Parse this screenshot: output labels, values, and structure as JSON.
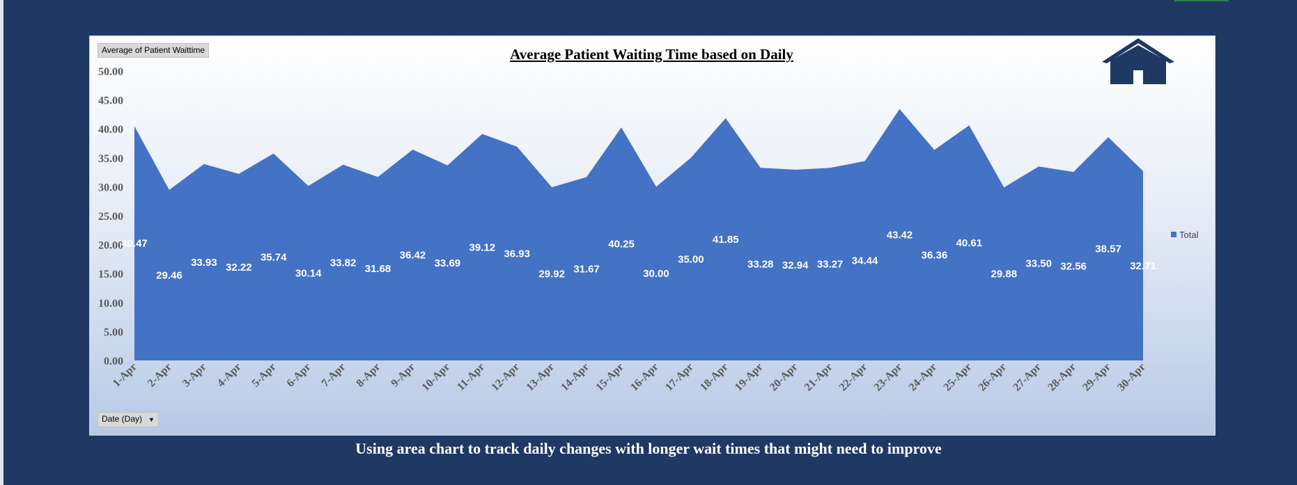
{
  "header": {
    "measure_chip": "Average of Patient Waittime",
    "title": "Average Patient Waiting Time based on Daily"
  },
  "filters": {
    "date_chip": "Date (Day)"
  },
  "caption": "Using area chart to track daily changes with longer wait times that might need to improve",
  "colors": {
    "background": "#1f3864",
    "area_fill": "#4472c4",
    "home_icon": "#1f3864"
  },
  "icons": {
    "home": "home-icon",
    "dropdown": "dropdown-arrow-icon"
  },
  "chart_data": {
    "type": "area",
    "title": "Average Patient Waiting Time based on Daily",
    "xlabel": "",
    "ylabel": "",
    "ylim": [
      0,
      50
    ],
    "yticks": [
      "0.00",
      "5.00",
      "10.00",
      "15.00",
      "20.00",
      "25.00",
      "30.00",
      "35.00",
      "40.00",
      "45.00",
      "50.00"
    ],
    "grid": false,
    "legend_position": "right",
    "categories": [
      "1-Apr",
      "2-Apr",
      "3-Apr",
      "4-Apr",
      "5-Apr",
      "6-Apr",
      "7-Apr",
      "8-Apr",
      "9-Apr",
      "10-Apr",
      "11-Apr",
      "12-Apr",
      "13-Apr",
      "14-Apr",
      "15-Apr",
      "16-Apr",
      "17-Apr",
      "18-Apr",
      "19-Apr",
      "20-Apr",
      "21-Apr",
      "22-Apr",
      "23-Apr",
      "24-Apr",
      "25-Apr",
      "26-Apr",
      "27-Apr",
      "28-Apr",
      "29-Apr",
      "30-Apr"
    ],
    "series": [
      {
        "name": "Total",
        "values": [
          40.47,
          29.46,
          33.93,
          32.22,
          35.74,
          30.14,
          33.82,
          31.68,
          36.42,
          33.69,
          39.12,
          36.93,
          29.92,
          31.67,
          40.25,
          30.0,
          35.0,
          41.85,
          33.28,
          32.94,
          33.27,
          34.44,
          43.42,
          36.36,
          40.61,
          29.88,
          33.5,
          32.56,
          38.57,
          32.71
        ],
        "labels": [
          "40.47",
          "29.46",
          "33.93",
          "32.22",
          "35.74",
          "30.14",
          "33.82",
          "31.68",
          "36.42",
          "33.69",
          "39.12",
          "36.93",
          "29.92",
          "31.67",
          "40.25",
          "30.00",
          "35.00",
          "41.85",
          "33.28",
          "32.94",
          "33.27",
          "34.44",
          "43.42",
          "36.36",
          "40.61",
          "29.88",
          "33.50",
          "32.56",
          "38.57",
          "32.71"
        ]
      }
    ]
  }
}
